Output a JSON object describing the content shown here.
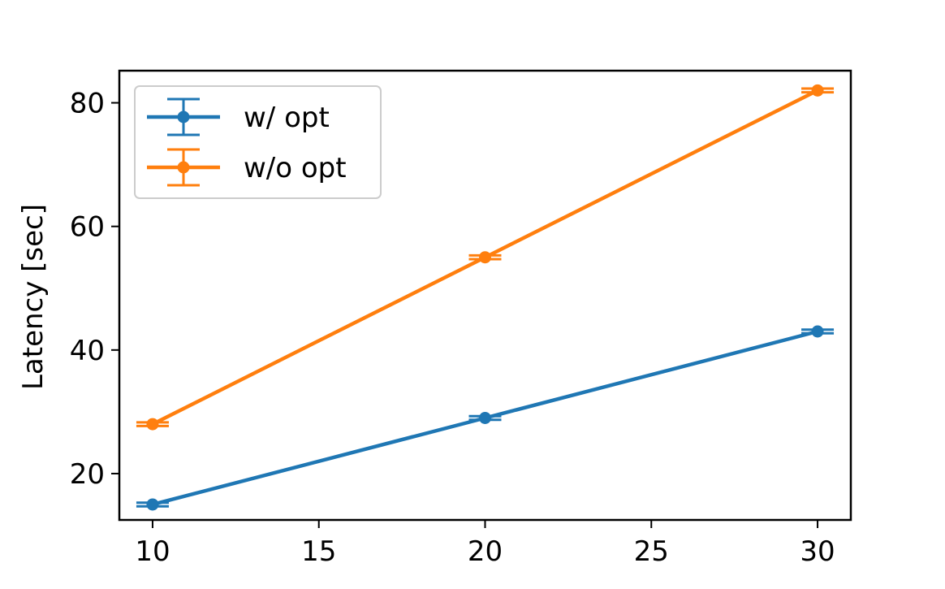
{
  "chart_data": {
    "type": "line",
    "title": "",
    "xlabel": "",
    "ylabel": "Latency [sec]",
    "x": [
      10,
      20,
      30
    ],
    "xlim": [
      9,
      31
    ],
    "ylim": [
      12.5,
      85.2
    ],
    "xticks": [
      10,
      15,
      20,
      25,
      30
    ],
    "yticks": [
      20,
      40,
      60,
      80
    ],
    "xtick_labels": [
      "10",
      "15",
      "20",
      "25",
      "30"
    ],
    "ytick_labels": [
      "20",
      "40",
      "60",
      "80"
    ],
    "error_bars": true,
    "grid": false,
    "legend_position": "top-left",
    "series": [
      {
        "name": "w/ opt",
        "color": "#1f77b4",
        "values": [
          15,
          29,
          43
        ],
        "errors": [
          0.3,
          0.3,
          0.3
        ]
      },
      {
        "name": "w/o opt",
        "color": "#ff7f0e",
        "values": [
          28,
          55,
          82
        ],
        "errors": [
          0.3,
          0.3,
          0.3
        ]
      }
    ]
  }
}
